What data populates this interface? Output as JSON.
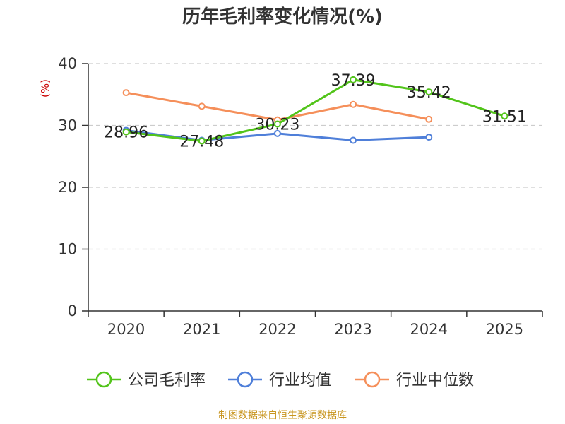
{
  "chart_data": {
    "type": "line",
    "title": "历年毛利率变化情况(%)",
    "ylabel": "(%)",
    "xlabel": "",
    "categories": [
      "2020",
      "2021",
      "2022",
      "2023",
      "2024",
      "2025"
    ],
    "yticks": [
      "0",
      "10",
      "20",
      "30",
      "40"
    ],
    "ylim": [
      0,
      40
    ],
    "grid": true,
    "legend_position": "bottom",
    "series": [
      {
        "name": "公司毛利率",
        "color": "#52c41a",
        "values": [
          28.96,
          27.48,
          30.23,
          37.39,
          35.42,
          31.51
        ],
        "labels": [
          "28.96",
          "27.48",
          "30.23",
          "37.39",
          "35.42",
          "31.51"
        ]
      },
      {
        "name": "行业均值",
        "color": "#4f7fd9",
        "values": [
          29.2,
          27.6,
          28.7,
          27.6,
          28.1,
          null
        ]
      },
      {
        "name": "行业中位数",
        "color": "#f58f5a",
        "values": [
          35.3,
          33.1,
          30.9,
          33.4,
          31.0,
          null
        ]
      }
    ]
  },
  "footer": {
    "source": "制图数据来自恒生聚源数据库"
  }
}
